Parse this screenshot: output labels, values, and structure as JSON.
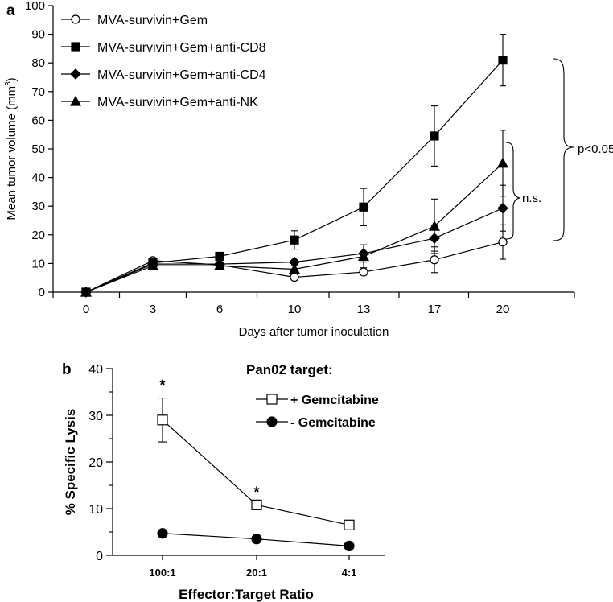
{
  "chart_data": [
    {
      "panel_label": "a",
      "type": "line",
      "xlabel": "Days after tumor inoculation",
      "ylabel": "Mean tumor volume (mm",
      "ylabel_sup": "3",
      "ylabel_close": ")",
      "categories": [
        "0",
        "3",
        "6",
        "10",
        "13",
        "17",
        "20"
      ],
      "yticks": [
        "0",
        "10",
        "20",
        "30",
        "40",
        "50",
        "60",
        "70",
        "80",
        "90",
        "100"
      ],
      "ylim": [
        0,
        100
      ],
      "grid": false,
      "legend_position": "top-left",
      "series": [
        {
          "name": "MVA-survivin+Gem",
          "marker": "open-circle",
          "values": [
            0,
            11,
            9.5,
            5.2,
            7,
            11.3,
            17.5
          ],
          "err": [
            0,
            0.8,
            0.8,
            0.8,
            1,
            4.5,
            6
          ]
        },
        {
          "name": "MVA-survivin+Gem+anti-CD8",
          "marker": "filled-square",
          "values": [
            0,
            10.2,
            12.5,
            18.2,
            29.7,
            54.5,
            81
          ],
          "err": [
            0,
            0.8,
            1,
            3.2,
            6.5,
            10.5,
            9
          ]
        },
        {
          "name": "MVA-survivin+Gem+anti-CD4",
          "marker": "filled-diamond",
          "values": [
            0,
            9.8,
            9.8,
            10.5,
            13.5,
            18.8,
            29.3
          ],
          "err": [
            0,
            0.8,
            0.8,
            0.8,
            3,
            4.5,
            8
          ]
        },
        {
          "name": "MVA-survivin+Gem+anti-NK",
          "marker": "filled-triangle",
          "values": [
            0,
            9.2,
            9.2,
            8,
            12.5,
            23,
            45
          ],
          "err": [
            0,
            0.8,
            0.8,
            1.5,
            4,
            9.5,
            11.5
          ]
        }
      ],
      "annotations": [
        {
          "text": "p<0.05",
          "groups": "MVA-survivin+Gem+anti-CD8 vs others"
        },
        {
          "text": "n.s.",
          "groups": "MVA-survivin+Gem+anti-NK, anti-CD4, MVA-survivin+Gem"
        }
      ]
    },
    {
      "panel_label": "b",
      "type": "line",
      "title": "Pan02 target:",
      "xlabel": "Effector:Target Ratio",
      "ylabel": "% Specific Lysis",
      "categories": [
        "100:1",
        "20:1",
        "4:1"
      ],
      "yticks": [
        "0",
        "10",
        "20",
        "30",
        "40"
      ],
      "ylim": [
        0,
        40
      ],
      "grid": false,
      "legend_position": "top-right",
      "series": [
        {
          "name": "+ Gemcitabine",
          "marker": "open-square",
          "values": [
            29,
            10.8,
            6.5
          ],
          "err": [
            4.7,
            0,
            0
          ]
        },
        {
          "name": "- Gemcitabine",
          "marker": "filled-circle",
          "values": [
            4.7,
            3.5,
            2
          ],
          "err": [
            0,
            0,
            0
          ]
        }
      ],
      "annotations": [
        {
          "text": "*",
          "category": "100:1"
        },
        {
          "text": "*",
          "category": "20:1"
        }
      ]
    }
  ]
}
